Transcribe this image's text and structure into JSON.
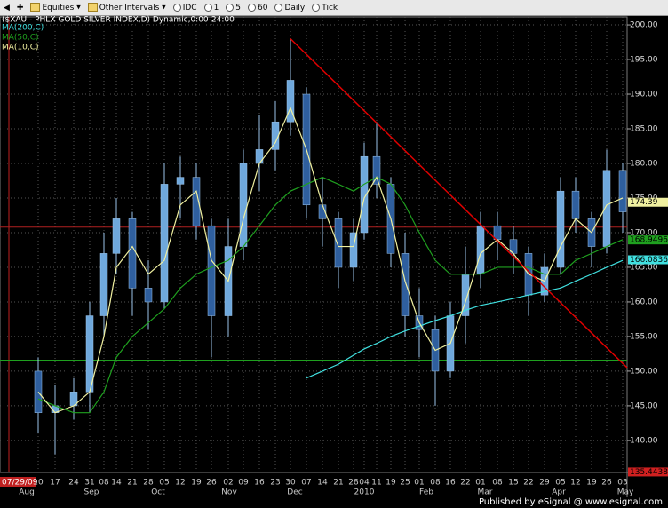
{
  "toolbar": {
    "items": [
      "Equities",
      "Other Intervals",
      "IDC",
      "1",
      "5",
      "60",
      "Daily",
      "Tick"
    ]
  },
  "chart_data": {
    "type": "candlestick",
    "title": "($XAU - PHLX GOLD SILVER INDEX,D) Dynamic,0:00-24:00",
    "start_label": "07/29/09",
    "categories": [
      "10",
      "17",
      "24",
      "31",
      "08",
      "14",
      "21",
      "28",
      "05",
      "12",
      "19",
      "26",
      "02",
      "09",
      "16",
      "23",
      "30",
      "07",
      "14",
      "21",
      "28",
      "04",
      "11",
      "19",
      "25",
      "01",
      "08",
      "16",
      "22",
      "01",
      "08",
      "15",
      "22",
      "29",
      "05",
      "12",
      "19",
      "26",
      "03"
    ],
    "months": [
      "Aug",
      "Sep",
      "Oct",
      "Nov",
      "Dec",
      "2010",
      "Feb",
      "Mar",
      "Apr",
      "May"
    ],
    "open": [
      150,
      144,
      145,
      147,
      158,
      167,
      172,
      162,
      160,
      177,
      178,
      171,
      158,
      168,
      180,
      182,
      186,
      190,
      174,
      172,
      165,
      170,
      181,
      177,
      167,
      158,
      156,
      150,
      158,
      164,
      171,
      169,
      167,
      161,
      165,
      176,
      172,
      168,
      179
    ],
    "high": [
      152,
      148,
      149,
      160,
      170,
      175,
      173,
      166,
      180,
      181,
      180,
      172,
      172,
      182,
      187,
      189,
      198,
      191,
      178,
      173,
      172,
      183,
      186,
      178,
      170,
      162,
      158,
      160,
      168,
      173,
      173,
      171,
      168,
      167,
      178,
      178,
      173,
      182,
      180
    ],
    "low": [
      141,
      138,
      143,
      144,
      155,
      164,
      158,
      156,
      159,
      172,
      169,
      152,
      155,
      166,
      176,
      179,
      184,
      172,
      168,
      162,
      163,
      169,
      175,
      165,
      155,
      152,
      145,
      149,
      154,
      162,
      166,
      164,
      158,
      160,
      164,
      170,
      165,
      167,
      170
    ],
    "close": [
      144,
      145,
      147,
      158,
      167,
      172,
      162,
      160,
      177,
      178,
      171,
      158,
      168,
      180,
      182,
      186,
      192,
      174,
      172,
      165,
      170,
      181,
      177,
      167,
      158,
      156,
      150,
      158,
      164,
      171,
      169,
      167,
      161,
      165,
      176,
      172,
      168,
      179,
      173
    ],
    "up_color": "#6fa8dc",
    "down_color": "#2f5f9e",
    "series": [
      {
        "name": "MA(200,C)",
        "color": "#40e0e0",
        "values": [
          null,
          null,
          null,
          null,
          null,
          null,
          null,
          null,
          null,
          null,
          null,
          null,
          null,
          null,
          null,
          null,
          null,
          149,
          150,
          151,
          152.3,
          153.2,
          154,
          155,
          155.8,
          156.5,
          157.3,
          158,
          158.8,
          159.5,
          160,
          160.5,
          161,
          161.5,
          162,
          163,
          164,
          165,
          166
        ]
      },
      {
        "name": "MA(50,C)",
        "color": "#1fa01f",
        "values": [
          146,
          145,
          144,
          144,
          147,
          152,
          155,
          157,
          159,
          162,
          164,
          165,
          166,
          168,
          171,
          174,
          176,
          177,
          178,
          177,
          176,
          177,
          178,
          177,
          174,
          170,
          166,
          164,
          164,
          164,
          165,
          165,
          165,
          164,
          164,
          166,
          167,
          168,
          169
        ]
      },
      {
        "name": "MA(10,C)",
        "color": "#f0f0a0",
        "values": [
          147,
          144,
          145,
          147,
          155,
          165,
          168,
          164,
          166,
          174,
          176,
          166,
          163,
          172,
          180,
          183,
          188,
          182,
          174,
          168,
          168,
          175,
          178,
          172,
          163,
          157,
          153,
          154,
          160,
          167,
          169,
          167,
          164,
          163,
          168,
          172,
          170,
          174,
          175
        ]
      }
    ],
    "trendline": {
      "color": "#e00000",
      "values": [
        198,
        150.5
      ]
    },
    "hlines": [
      {
        "color": "#b02020",
        "value": 170.8
      },
      {
        "color": "#1fa01f",
        "value": 151.6
      }
    ],
    "last_values": [
      {
        "value": 174.39,
        "label": "174.39",
        "color": "#f0f0a0"
      },
      {
        "value": 168.9496,
        "label": "168.9496",
        "color": "#1fa01f"
      },
      {
        "value": 166.0836,
        "label": "166.0836",
        "color": "#40e0e0"
      },
      {
        "value": 135.443876,
        "label": "135.443876",
        "color": "#d02020"
      }
    ],
    "ylim": [
      135.37,
      201.16
    ],
    "yticks": [
      {
        "value": 140,
        "label": "140.00"
      },
      {
        "value": 145,
        "label": "145.00"
      },
      {
        "value": 150,
        "label": "150.00"
      },
      {
        "value": 155,
        "label": "155.00"
      },
      {
        "value": 160,
        "label": "160.00"
      },
      {
        "value": 165,
        "label": "165.00"
      },
      {
        "value": 170,
        "label": "170.00"
      },
      {
        "value": 175,
        "label": "175.00"
      },
      {
        "value": 180,
        "label": "180.00"
      },
      {
        "value": 185,
        "label": "185.00"
      },
      {
        "value": 190,
        "label": "190.00"
      },
      {
        "value": 195,
        "label": "195.00"
      },
      {
        "value": 200,
        "label": "200.00"
      }
    ],
    "grid": true
  },
  "footer": "Published by eSignal @ www.esignal.com"
}
